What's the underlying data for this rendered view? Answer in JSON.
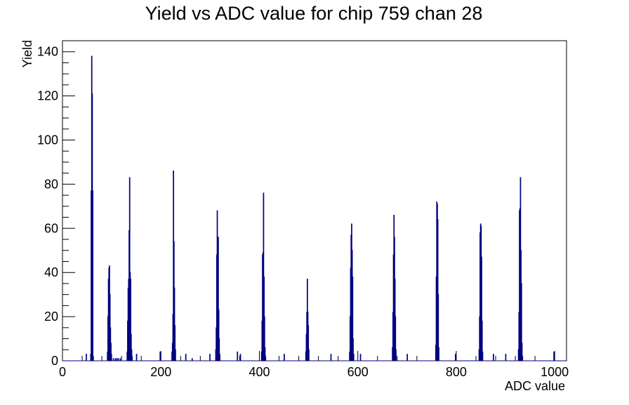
{
  "chart_data": {
    "type": "bar",
    "title": "Yield vs ADC value for chip 759 chan 28",
    "xlabel": "ADC value",
    "ylabel": "Yield",
    "xlim": [
      0,
      1024
    ],
    "ylim": [
      0,
      145
    ],
    "x_ticks": [
      0,
      200,
      400,
      600,
      800,
      1000
    ],
    "y_ticks": [
      0,
      20,
      40,
      60,
      80,
      100,
      120,
      140
    ],
    "grid": false,
    "legend": "none",
    "colors": {
      "line": "#000080",
      "axes": "#000000",
      "background": "#ffffff"
    },
    "series": [
      {
        "bin_width": 1,
        "points": [
          [
            48,
            3
          ],
          [
            57,
            3
          ],
          [
            58,
            77
          ],
          [
            59,
            138
          ],
          [
            60,
            121
          ],
          [
            61,
            77
          ],
          [
            62,
            2
          ],
          [
            91,
            4
          ],
          [
            92,
            20
          ],
          [
            93,
            37
          ],
          [
            94,
            42
          ],
          [
            95,
            43
          ],
          [
            96,
            30
          ],
          [
            97,
            15
          ],
          [
            98,
            8
          ],
          [
            99,
            3
          ],
          [
            103,
            1
          ],
          [
            107,
            1
          ],
          [
            110,
            1
          ],
          [
            113,
            1
          ],
          [
            117,
            1
          ],
          [
            131,
            4
          ],
          [
            132,
            18
          ],
          [
            133,
            33
          ],
          [
            134,
            37
          ],
          [
            135,
            59
          ],
          [
            136,
            83
          ],
          [
            137,
            40
          ],
          [
            138,
            37
          ],
          [
            139,
            12
          ],
          [
            140,
            5
          ],
          [
            141,
            2
          ],
          [
            150,
            3
          ],
          [
            198,
            4
          ],
          [
            222,
            4
          ],
          [
            223,
            8
          ],
          [
            224,
            21
          ],
          [
            225,
            86
          ],
          [
            226,
            54
          ],
          [
            227,
            33
          ],
          [
            228,
            16
          ],
          [
            229,
            5
          ],
          [
            250,
            3
          ],
          [
            263,
            1
          ],
          [
            299,
            3
          ],
          [
            311,
            5
          ],
          [
            312,
            15
          ],
          [
            313,
            48
          ],
          [
            314,
            68
          ],
          [
            315,
            56
          ],
          [
            316,
            56
          ],
          [
            317,
            23
          ],
          [
            318,
            10
          ],
          [
            319,
            3
          ],
          [
            355,
            4
          ],
          [
            361,
            3
          ],
          [
            404,
            4
          ],
          [
            405,
            18
          ],
          [
            406,
            48
          ],
          [
            407,
            49
          ],
          [
            408,
            76
          ],
          [
            409,
            38
          ],
          [
            410,
            20
          ],
          [
            411,
            6
          ],
          [
            412,
            2
          ],
          [
            450,
            3
          ],
          [
            494,
            4
          ],
          [
            495,
            12
          ],
          [
            496,
            22
          ],
          [
            497,
            37
          ],
          [
            498,
            22
          ],
          [
            499,
            16
          ],
          [
            500,
            5
          ],
          [
            545,
            3
          ],
          [
            583,
            4
          ],
          [
            584,
            20
          ],
          [
            585,
            42
          ],
          [
            586,
            57
          ],
          [
            587,
            62
          ],
          [
            588,
            50
          ],
          [
            589,
            38
          ],
          [
            590,
            10
          ],
          [
            591,
            3
          ],
          [
            605,
            3
          ],
          [
            670,
            6
          ],
          [
            671,
            22
          ],
          [
            672,
            48
          ],
          [
            673,
            66
          ],
          [
            674,
            56
          ],
          [
            675,
            37
          ],
          [
            676,
            20
          ],
          [
            677,
            5
          ],
          [
            700,
            3
          ],
          [
            758,
            7
          ],
          [
            759,
            38
          ],
          [
            760,
            72
          ],
          [
            761,
            71
          ],
          [
            762,
            64
          ],
          [
            763,
            30
          ],
          [
            764,
            6
          ],
          [
            798,
            3
          ],
          [
            846,
            5
          ],
          [
            847,
            20
          ],
          [
            848,
            58
          ],
          [
            849,
            62
          ],
          [
            850,
            61
          ],
          [
            851,
            47
          ],
          [
            852,
            18
          ],
          [
            853,
            4
          ],
          [
            875,
            3
          ],
          [
            900,
            3
          ],
          [
            926,
            5
          ],
          [
            927,
            22
          ],
          [
            928,
            68
          ],
          [
            929,
            69
          ],
          [
            930,
            83
          ],
          [
            931,
            50
          ],
          [
            932,
            35
          ],
          [
            933,
            8
          ],
          [
            934,
            2
          ],
          [
            998,
            4
          ]
        ]
      }
    ]
  }
}
